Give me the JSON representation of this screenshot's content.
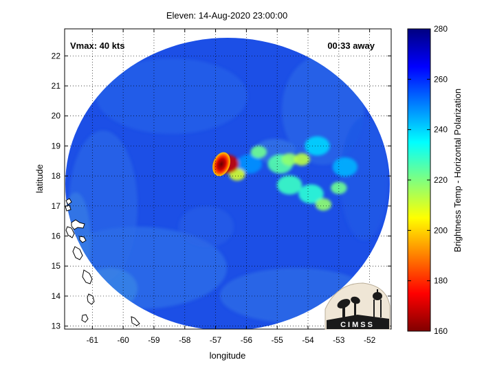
{
  "chart_data": {
    "type": "heatmap",
    "title": "Eleven: 14-Aug-2020 23:00:00",
    "xlabel": "longitude",
    "ylabel": "latitude",
    "xlim": [
      -61.9,
      -51.3
    ],
    "ylim": [
      12.9,
      22.9
    ],
    "xticks": [
      -61,
      -60,
      -59,
      -58,
      -57,
      -56,
      -55,
      -54,
      -53,
      -52
    ],
    "yticks": [
      13,
      14,
      15,
      16,
      17,
      18,
      19,
      20,
      21,
      22
    ],
    "grid": true,
    "annotations": {
      "vmax": "Vmax: 40 kts",
      "time_away": "00:33 away"
    },
    "colorbar": {
      "label": "Brightness Temp - Horizontal Polarization",
      "range": [
        160,
        280
      ],
      "ticks": [
        160,
        180,
        200,
        220,
        240,
        260,
        280
      ]
    },
    "swath_center": [
      -56.6,
      17.9
    ],
    "background_value": 262,
    "features": [
      {
        "lon": -56.65,
        "lat": 18.4,
        "value": 168
      },
      {
        "lon": -56.3,
        "lat": 18.05,
        "value": 210
      },
      {
        "lon": -55.6,
        "lat": 18.8,
        "value": 222
      },
      {
        "lon": -54.9,
        "lat": 18.4,
        "value": 225
      },
      {
        "lon": -54.6,
        "lat": 18.55,
        "value": 218
      },
      {
        "lon": -54.2,
        "lat": 18.55,
        "value": 213
      },
      {
        "lon": -54.6,
        "lat": 17.7,
        "value": 228
      },
      {
        "lon": -53.9,
        "lat": 17.4,
        "value": 230
      },
      {
        "lon": -53.5,
        "lat": 17.05,
        "value": 218
      },
      {
        "lon": -53.0,
        "lat": 17.6,
        "value": 222
      },
      {
        "lon": -53.7,
        "lat": 19.0,
        "value": 240
      },
      {
        "lon": -52.8,
        "lat": 18.3,
        "value": 244
      },
      {
        "lon": -55.9,
        "lat": 18.4,
        "value": 248
      }
    ],
    "logo": "CIMSS"
  }
}
